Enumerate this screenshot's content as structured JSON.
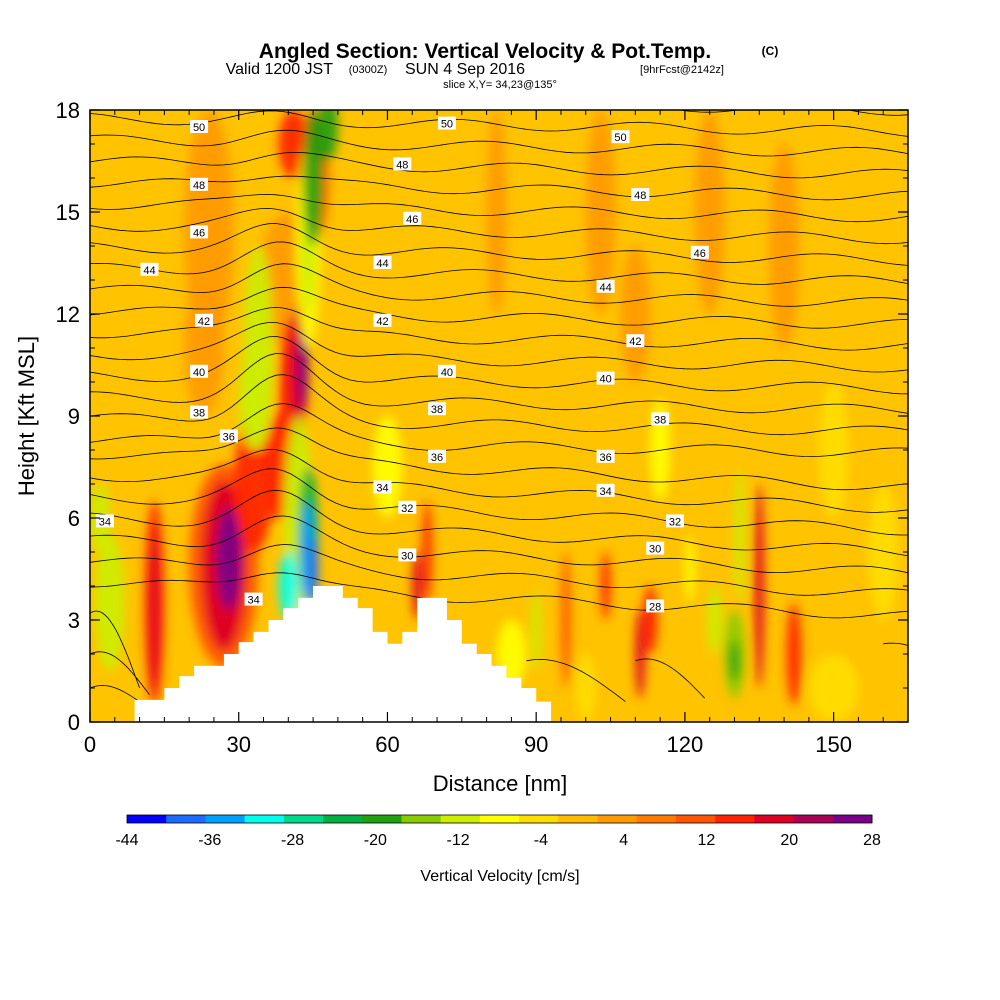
{
  "title": {
    "main": "Angled Section: Vertical Velocity & Pot.Temp.",
    "main_suffix": "(C)",
    "valid_prefix": "Valid 1200 JST",
    "valid_utc": "(0300Z)",
    "valid_date": "SUN 4 Sep 2016",
    "forecast": "[9hrFcst@2142z]",
    "slice": "slice X,Y= 34,23@135°"
  },
  "chart_data": {
    "type": "heatmap",
    "xlabel": "Distance [nm]",
    "ylabel": "Height [Kft MSL]",
    "xlim": [
      0,
      165
    ],
    "ylim": [
      0,
      18
    ],
    "x_ticks": [
      0,
      30,
      60,
      90,
      120,
      150
    ],
    "y_ticks": [
      0,
      3,
      6,
      9,
      12,
      15,
      18
    ],
    "colorbar": {
      "label": "Vertical Velocity [cm/s]",
      "tick_labels": [
        "-44",
        "-36",
        "-28",
        "-20",
        "-12",
        "-4",
        "4",
        "12",
        "20",
        "28"
      ],
      "min": -44,
      "max": 28,
      "step": 4,
      "colors": [
        "#0000ff",
        "#1e6bff",
        "#00a0ff",
        "#00ffee",
        "#00d88a",
        "#00b040",
        "#22a010",
        "#88cc00",
        "#ccee00",
        "#ffff00",
        "#ffdd00",
        "#ffbb00",
        "#ff9a00",
        "#ff7a00",
        "#ff5500",
        "#ff2200",
        "#dd0022",
        "#aa0055",
        "#7a0088"
      ]
    },
    "contour_variable": "Potential temperature (C)",
    "contour_labels": [
      {
        "label": "50",
        "x": 22,
        "y": 17.5
      },
      {
        "label": "50",
        "x": 72,
        "y": 17.6
      },
      {
        "label": "50",
        "x": 107,
        "y": 17.2
      },
      {
        "label": "48",
        "x": 22,
        "y": 15.8
      },
      {
        "label": "48",
        "x": 63,
        "y": 16.4
      },
      {
        "label": "48",
        "x": 111,
        "y": 15.5
      },
      {
        "label": "46",
        "x": 22,
        "y": 14.4
      },
      {
        "label": "46",
        "x": 65,
        "y": 14.8
      },
      {
        "label": "46",
        "x": 123,
        "y": 13.8
      },
      {
        "label": "44",
        "x": 12,
        "y": 13.3
      },
      {
        "label": "44",
        "x": 59,
        "y": 13.5
      },
      {
        "label": "44",
        "x": 104,
        "y": 12.8
      },
      {
        "label": "42",
        "x": 23,
        "y": 11.8
      },
      {
        "label": "42",
        "x": 59,
        "y": 11.8
      },
      {
        "label": "42",
        "x": 110,
        "y": 11.2
      },
      {
        "label": "40",
        "x": 22,
        "y": 10.3
      },
      {
        "label": "40",
        "x": 72,
        "y": 10.3
      },
      {
        "label": "40",
        "x": 104,
        "y": 10.1
      },
      {
        "label": "38",
        "x": 22,
        "y": 9.1
      },
      {
        "label": "38",
        "x": 70,
        "y": 9.2
      },
      {
        "label": "38",
        "x": 115,
        "y": 8.9
      },
      {
        "label": "36",
        "x": 28,
        "y": 8.4
      },
      {
        "label": "36",
        "x": 70,
        "y": 7.8
      },
      {
        "label": "36",
        "x": 104,
        "y": 7.8
      },
      {
        "label": "34",
        "x": 3,
        "y": 5.9
      },
      {
        "label": "34",
        "x": 59,
        "y": 6.9
      },
      {
        "label": "34",
        "x": 104,
        "y": 6.8
      },
      {
        "label": "32",
        "x": 64,
        "y": 6.3
      },
      {
        "label": "32",
        "x": 118,
        "y": 5.9
      },
      {
        "label": "30",
        "x": 64,
        "y": 4.9
      },
      {
        "label": "30",
        "x": 114,
        "y": 5.1
      },
      {
        "label": "28",
        "x": 114,
        "y": 3.4
      },
      {
        "label": "34",
        "x": 33,
        "y": 3.6
      }
    ],
    "terrain": [
      [
        0,
        0
      ],
      [
        9,
        0
      ],
      [
        9,
        0.65
      ],
      [
        15,
        0.65
      ],
      [
        15,
        1
      ],
      [
        18,
        1
      ],
      [
        18,
        1.35
      ],
      [
        21,
        1.35
      ],
      [
        21,
        1.65
      ],
      [
        27,
        1.65
      ],
      [
        27,
        2
      ],
      [
        30,
        2
      ],
      [
        30,
        2.35
      ],
      [
        33,
        2.35
      ],
      [
        33,
        2.65
      ],
      [
        36,
        2.65
      ],
      [
        36,
        3
      ],
      [
        39,
        3
      ],
      [
        39,
        3.35
      ],
      [
        42,
        3.35
      ],
      [
        42,
        3.65
      ],
      [
        45,
        3.65
      ],
      [
        45,
        4
      ],
      [
        51,
        4
      ],
      [
        51,
        3.65
      ],
      [
        54,
        3.65
      ],
      [
        54,
        3.35
      ],
      [
        57,
        3.35
      ],
      [
        57,
        2.65
      ],
      [
        60,
        2.65
      ],
      [
        60,
        2.3
      ],
      [
        63,
        2.3
      ],
      [
        63,
        2.65
      ],
      [
        66,
        2.65
      ],
      [
        66,
        3.65
      ],
      [
        72,
        3.65
      ],
      [
        72,
        3
      ],
      [
        75,
        3
      ],
      [
        75,
        2.3
      ],
      [
        78,
        2.3
      ],
      [
        78,
        2
      ],
      [
        81,
        2
      ],
      [
        81,
        1.65
      ],
      [
        84,
        1.65
      ],
      [
        84,
        1.3
      ],
      [
        87,
        1.3
      ],
      [
        87,
        1
      ],
      [
        90,
        1
      ],
      [
        90,
        0.6
      ],
      [
        93,
        0.6
      ],
      [
        93,
        0
      ],
      [
        165,
        0
      ]
    ],
    "theta_lines_midlevel": [
      28,
      30,
      32,
      34,
      36,
      38,
      40,
      42,
      44,
      46,
      48,
      50
    ]
  }
}
